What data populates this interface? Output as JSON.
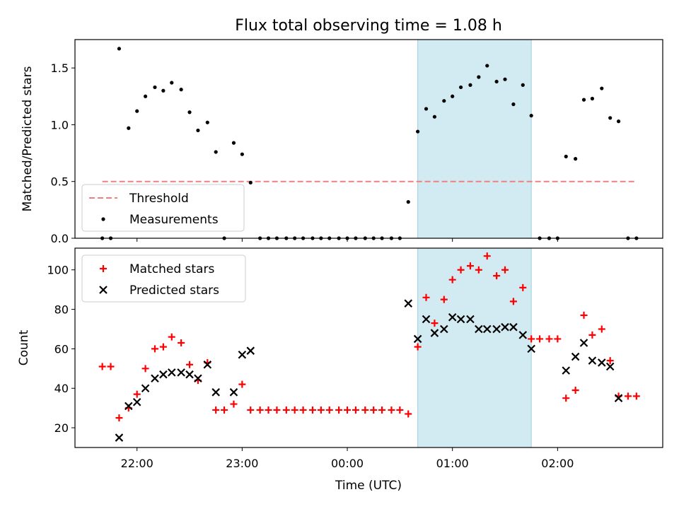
{
  "chart_data": {
    "title": "Flux total observing time = 1.08 h",
    "x_unit": "hours since 00:00 UTC",
    "x_tick_labels": [
      "22:00",
      "23:00",
      "00:00",
      "01:00",
      "02:00"
    ],
    "x_ticks": [
      -2,
      -1,
      0,
      1,
      2
    ],
    "xlabel": "Time (UTC)",
    "xlim": [
      -2.59,
      3.0
    ],
    "highlight_span": [
      0.67,
      1.75
    ],
    "highlight_color": "#add8e6",
    "panels": [
      {
        "type": "scatter",
        "ylabel": "Matched/Predicted stars",
        "ylim": [
          0,
          1.75
        ],
        "yticks": [
          0.0,
          0.5,
          1.0,
          1.5
        ],
        "ytick_labels": [
          "0.0",
          "0.5",
          "1.0",
          "1.5"
        ],
        "legend": {
          "placement": "lower-left",
          "entries": [
            "Threshold",
            "Measurements"
          ]
        },
        "threshold": {
          "name": "Threshold",
          "value": 0.5,
          "x_range": [
            -2.33,
            2.75
          ],
          "color": "#f08080",
          "style": "dashed"
        },
        "series": [
          {
            "name": "Measurements",
            "color": "#000000",
            "marker": "dot",
            "points": [
              [
                -2.33,
                0.0
              ],
              [
                -2.25,
                0.0
              ],
              [
                -2.17,
                1.67
              ],
              [
                -2.08,
                0.97
              ],
              [
                -2.0,
                1.12
              ],
              [
                -1.92,
                1.25
              ],
              [
                -1.83,
                1.33
              ],
              [
                -1.75,
                1.3
              ],
              [
                -1.67,
                1.37
              ],
              [
                -1.58,
                1.31
              ],
              [
                -1.5,
                1.11
              ],
              [
                -1.42,
                0.95
              ],
              [
                -1.33,
                1.02
              ],
              [
                -1.25,
                0.76
              ],
              [
                -1.17,
                0.0
              ],
              [
                -1.08,
                0.84
              ],
              [
                -1.0,
                0.74
              ],
              [
                -0.92,
                0.49
              ],
              [
                -0.83,
                0.0
              ],
              [
                -0.75,
                0.0
              ],
              [
                -0.67,
                0.0
              ],
              [
                -0.58,
                0.0
              ],
              [
                -0.5,
                0.0
              ],
              [
                -0.42,
                0.0
              ],
              [
                -0.33,
                0.0
              ],
              [
                -0.25,
                0.0
              ],
              [
                -0.17,
                0.0
              ],
              [
                -0.08,
                0.0
              ],
              [
                0.0,
                0.0
              ],
              [
                0.08,
                0.0
              ],
              [
                0.17,
                0.0
              ],
              [
                0.25,
                0.0
              ],
              [
                0.33,
                0.0
              ],
              [
                0.42,
                0.0
              ],
              [
                0.5,
                0.0
              ],
              [
                0.58,
                0.32
              ],
              [
                0.67,
                0.94
              ],
              [
                0.75,
                1.14
              ],
              [
                0.83,
                1.07
              ],
              [
                0.92,
                1.21
              ],
              [
                1.0,
                1.25
              ],
              [
                1.08,
                1.33
              ],
              [
                1.17,
                1.35
              ],
              [
                1.25,
                1.42
              ],
              [
                1.33,
                1.52
              ],
              [
                1.42,
                1.38
              ],
              [
                1.5,
                1.4
              ],
              [
                1.58,
                1.18
              ],
              [
                1.67,
                1.35
              ],
              [
                1.75,
                1.08
              ],
              [
                1.83,
                0.0
              ],
              [
                1.92,
                0.0
              ],
              [
                2.0,
                0.0
              ],
              [
                2.08,
                0.72
              ],
              [
                2.17,
                0.7
              ],
              [
                2.25,
                1.22
              ],
              [
                2.33,
                1.23
              ],
              [
                2.42,
                1.32
              ],
              [
                2.5,
                1.06
              ],
              [
                2.58,
                1.03
              ],
              [
                2.67,
                0.0
              ],
              [
                2.75,
                0.0
              ]
            ]
          }
        ]
      },
      {
        "type": "scatter",
        "ylabel": "Count",
        "ylim": [
          10,
          111
        ],
        "yticks": [
          20,
          40,
          60,
          80,
          100
        ],
        "ytick_labels": [
          "20",
          "40",
          "60",
          "80",
          "100"
        ],
        "legend": {
          "placement": "upper-left",
          "entries": [
            "Matched stars",
            "Predicted stars"
          ]
        },
        "series": [
          {
            "name": "Matched stars",
            "color": "#ff0000",
            "marker": "plus",
            "points": [
              [
                -2.33,
                51
              ],
              [
                -2.25,
                51
              ],
              [
                -2.17,
                25
              ],
              [
                -2.08,
                30
              ],
              [
                -2.0,
                37
              ],
              [
                -1.92,
                50
              ],
              [
                -1.83,
                60
              ],
              [
                -1.75,
                61
              ],
              [
                -1.67,
                66
              ],
              [
                -1.58,
                63
              ],
              [
                -1.5,
                52
              ],
              [
                -1.42,
                44
              ],
              [
                -1.33,
                53
              ],
              [
                -1.25,
                29
              ],
              [
                -1.17,
                29
              ],
              [
                -1.08,
                32
              ],
              [
                -1.0,
                42
              ],
              [
                -0.92,
                29
              ],
              [
                -0.83,
                29
              ],
              [
                -0.75,
                29
              ],
              [
                -0.67,
                29
              ],
              [
                -0.58,
                29
              ],
              [
                -0.5,
                29
              ],
              [
                -0.42,
                29
              ],
              [
                -0.33,
                29
              ],
              [
                -0.25,
                29
              ],
              [
                -0.17,
                29
              ],
              [
                -0.08,
                29
              ],
              [
                0.0,
                29
              ],
              [
                0.08,
                29
              ],
              [
                0.17,
                29
              ],
              [
                0.25,
                29
              ],
              [
                0.33,
                29
              ],
              [
                0.42,
                29
              ],
              [
                0.5,
                29
              ],
              [
                0.58,
                27
              ],
              [
                0.67,
                61
              ],
              [
                0.75,
                86
              ],
              [
                0.83,
                73
              ],
              [
                0.92,
                85
              ],
              [
                1.0,
                95
              ],
              [
                1.08,
                100
              ],
              [
                1.17,
                102
              ],
              [
                1.25,
                100
              ],
              [
                1.33,
                107
              ],
              [
                1.42,
                97
              ],
              [
                1.5,
                100
              ],
              [
                1.58,
                84
              ],
              [
                1.67,
                91
              ],
              [
                1.75,
                65
              ],
              [
                1.83,
                65
              ],
              [
                1.92,
                65
              ],
              [
                2.0,
                65
              ],
              [
                2.08,
                35
              ],
              [
                2.17,
                39
              ],
              [
                2.25,
                77
              ],
              [
                2.33,
                67
              ],
              [
                2.42,
                70
              ],
              [
                2.5,
                54
              ],
              [
                2.58,
                36
              ],
              [
                2.67,
                36
              ],
              [
                2.75,
                36
              ]
            ]
          },
          {
            "name": "Predicted stars",
            "color": "#000000",
            "marker": "x",
            "points": [
              [
                -2.17,
                15
              ],
              [
                -2.08,
                31
              ],
              [
                -2.0,
                33
              ],
              [
                -1.92,
                40
              ],
              [
                -1.83,
                45
              ],
              [
                -1.75,
                47
              ],
              [
                -1.67,
                48
              ],
              [
                -1.58,
                48
              ],
              [
                -1.5,
                47
              ],
              [
                -1.42,
                45
              ],
              [
                -1.33,
                52
              ],
              [
                -1.25,
                38
              ],
              [
                -1.08,
                38
              ],
              [
                -1.0,
                57
              ],
              [
                -0.92,
                59
              ],
              [
                0.58,
                83
              ],
              [
                0.67,
                65
              ],
              [
                0.75,
                75
              ],
              [
                0.83,
                68
              ],
              [
                0.92,
                70
              ],
              [
                1.0,
                76
              ],
              [
                1.08,
                75
              ],
              [
                1.17,
                75
              ],
              [
                1.25,
                70
              ],
              [
                1.33,
                70
              ],
              [
                1.42,
                70
              ],
              [
                1.5,
                71
              ],
              [
                1.58,
                71
              ],
              [
                1.67,
                67
              ],
              [
                1.75,
                60
              ],
              [
                2.08,
                49
              ],
              [
                2.17,
                56
              ],
              [
                2.25,
                63
              ],
              [
                2.33,
                54
              ],
              [
                2.42,
                53
              ],
              [
                2.5,
                51
              ],
              [
                2.58,
                35
              ]
            ]
          }
        ]
      }
    ]
  }
}
